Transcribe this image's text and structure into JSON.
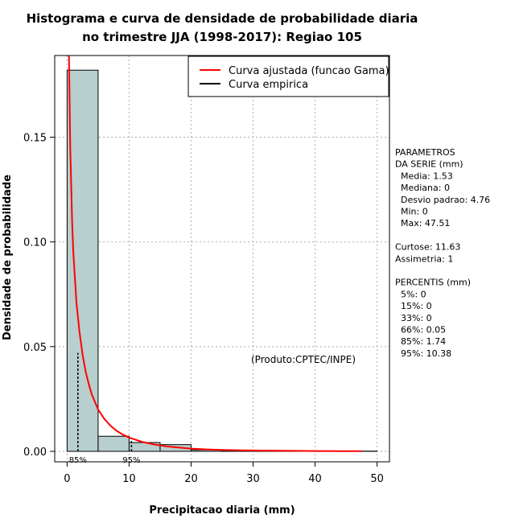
{
  "chart_data": {
    "type": "bar",
    "title_lines": [
      "Histograma e curva de densidade de probabilidade diaria",
      "no trimestre JJA (1998-2017): Regiao 105"
    ],
    "xlabel": "Precipitacao diaria (mm)",
    "ylabel": "Densidade de probabilidade",
    "xlim": [
      -2,
      52
    ],
    "ylim": [
      -0.005,
      0.189
    ],
    "x_ticks": [
      0,
      10,
      20,
      30,
      40,
      50
    ],
    "y_ticks": [
      0.0,
      0.05,
      0.1,
      0.15
    ],
    "x_tick_labels": [
      "0",
      "10",
      "20",
      "30",
      "40",
      "50"
    ],
    "y_tick_labels": [
      "0.00",
      "0.05",
      "0.10",
      "0.15"
    ],
    "grid": true,
    "bins": [
      {
        "start": 0,
        "end": 5,
        "density": 0.182
      },
      {
        "start": 5,
        "end": 10,
        "density": 0.0072
      },
      {
        "start": 10,
        "end": 15,
        "density": 0.0042
      },
      {
        "start": 15,
        "end": 20,
        "density": 0.0032
      },
      {
        "start": 20,
        "end": 25,
        "density": 0.0007
      },
      {
        "start": 25,
        "end": 30,
        "density": 0.0004
      },
      {
        "start": 30,
        "end": 35,
        "density": 0.0003
      },
      {
        "start": 35,
        "end": 40,
        "density": 0.0001
      },
      {
        "start": 40,
        "end": 45,
        "density": 0.0001
      },
      {
        "start": 45,
        "end": 50,
        "density": 0.0001
      }
    ],
    "bar_color": "#b7cfce",
    "series": [
      {
        "name": "Curva ajustada (funcao Gama)",
        "color": "#ff0000",
        "x": [
          0.3,
          0.5,
          0.8,
          1.0,
          1.5,
          2.0,
          2.5,
          3.0,
          3.5,
          4.0,
          5.0,
          6.0,
          7.0,
          8.0,
          9.0,
          10.0,
          12.0,
          14.0,
          16.0,
          18.0,
          20.0,
          22.0,
          25.0,
          28.0,
          30.0,
          35.0,
          40.0,
          45.0,
          47.5
        ],
        "y": [
          0.19,
          0.145,
          0.11,
          0.095,
          0.071,
          0.057,
          0.046,
          0.038,
          0.032,
          0.027,
          0.02,
          0.0155,
          0.0122,
          0.0098,
          0.008,
          0.0066,
          0.0046,
          0.0033,
          0.0024,
          0.0018,
          0.0013,
          0.001,
          0.0007,
          0.0005,
          0.0004,
          0.00025,
          0.00015,
          0.0001,
          8e-05
        ]
      },
      {
        "name": "Curva empirica",
        "color": "#000000",
        "x": [],
        "y": []
      }
    ],
    "legend_position": "top-right",
    "percentile_markers": [
      {
        "label": "85%",
        "value": 1.74,
        "density": 0.047
      },
      {
        "label": "95%",
        "value": 10.38,
        "density": 0.0059
      }
    ],
    "annotation": "(Produto:CPTEC/INPE)"
  },
  "stats_panel": [
    "PARAMETROS",
    "DA SERIE (mm)",
    "  Media: 1.53",
    "  Mediana: 0",
    "  Desvio padrao: 4.76",
    "  Min: 0",
    "  Max: 47.51",
    "",
    "Curtose: 11.63",
    "Assimetria: 1",
    "",
    "PERCENTIS (mm)",
    "  5%: 0",
    "  15%: 0",
    "  33%: 0",
    "  66%: 0.05",
    "  85%: 1.74",
    "  95%: 10.38"
  ]
}
